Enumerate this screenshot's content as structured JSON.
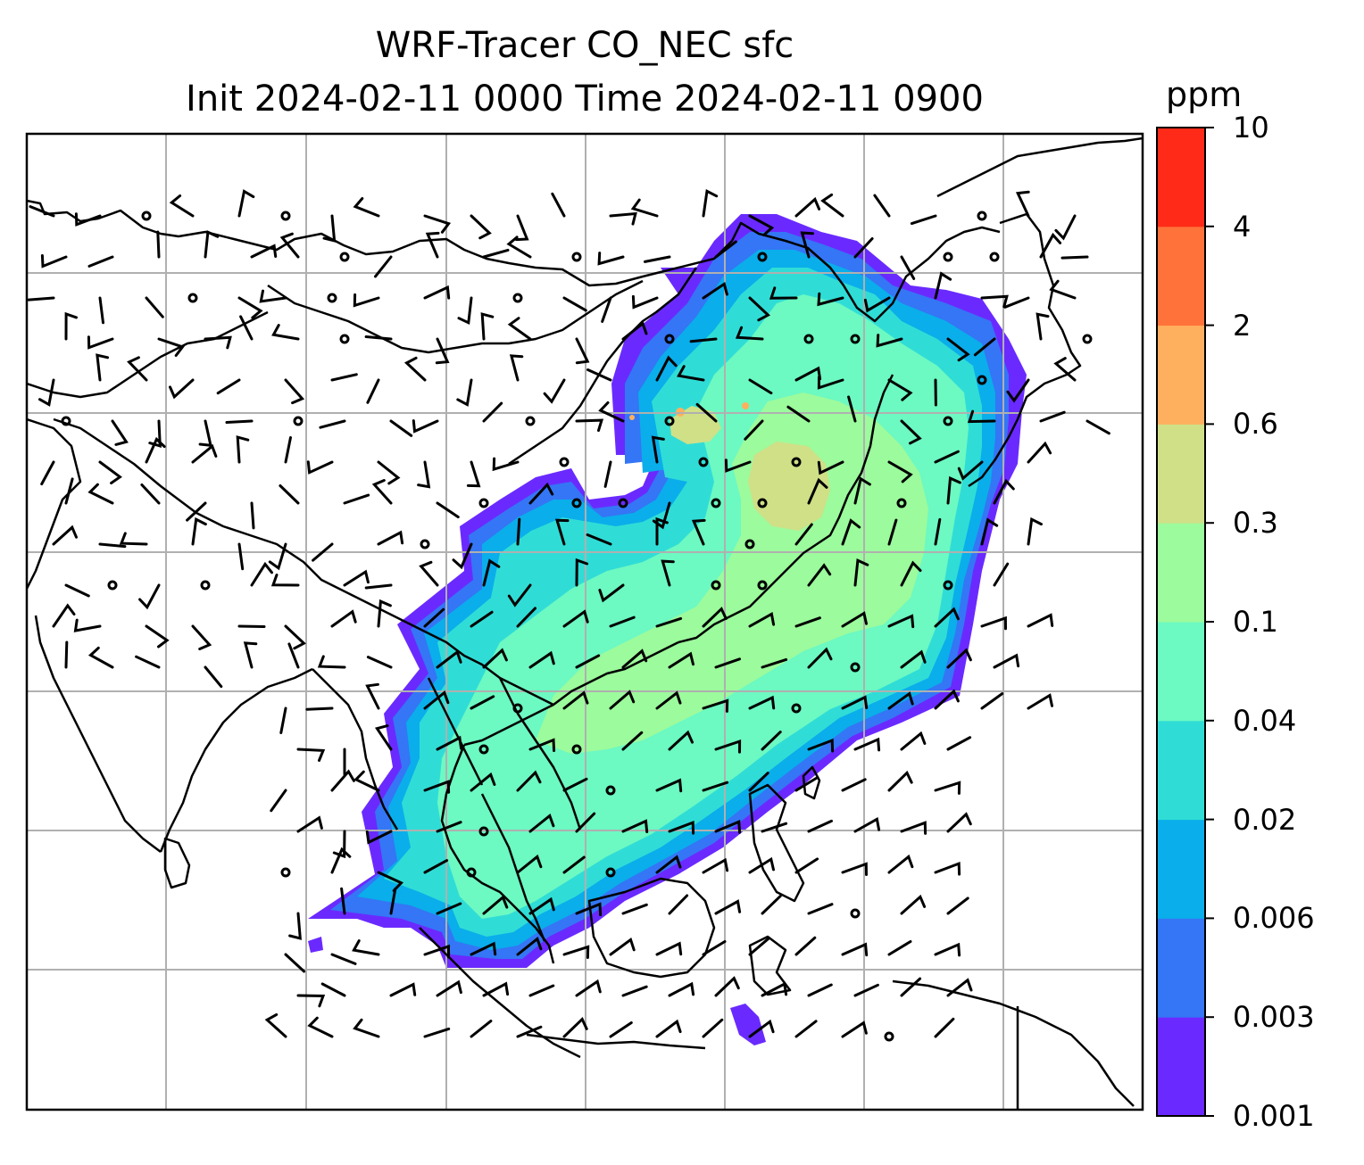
{
  "title": {
    "line1": "WRF-Tracer CO_NEC sfc",
    "line2": "Init 2024-02-11 0000 Time 2024-02-11 0900"
  },
  "colorbar": {
    "unit": "ppm",
    "levels": [
      "0.001",
      "0.003",
      "0.006",
      "0.02",
      "0.04",
      "0.1",
      "0.3",
      "0.6",
      "2",
      "4",
      "10"
    ],
    "colors": [
      "#6a2aff",
      "#3476f5",
      "#0aaeea",
      "#30ddd6",
      "#6cf9c2",
      "#9cfb9c",
      "#cfe087",
      "#ffb05e",
      "#ff733b",
      "#ff2b18"
    ]
  },
  "map": {
    "gridlines": true,
    "field": "CO_NEC tracer concentration (surface)",
    "overlays": [
      "coastlines",
      "country borders",
      "wind barbs"
    ]
  }
}
